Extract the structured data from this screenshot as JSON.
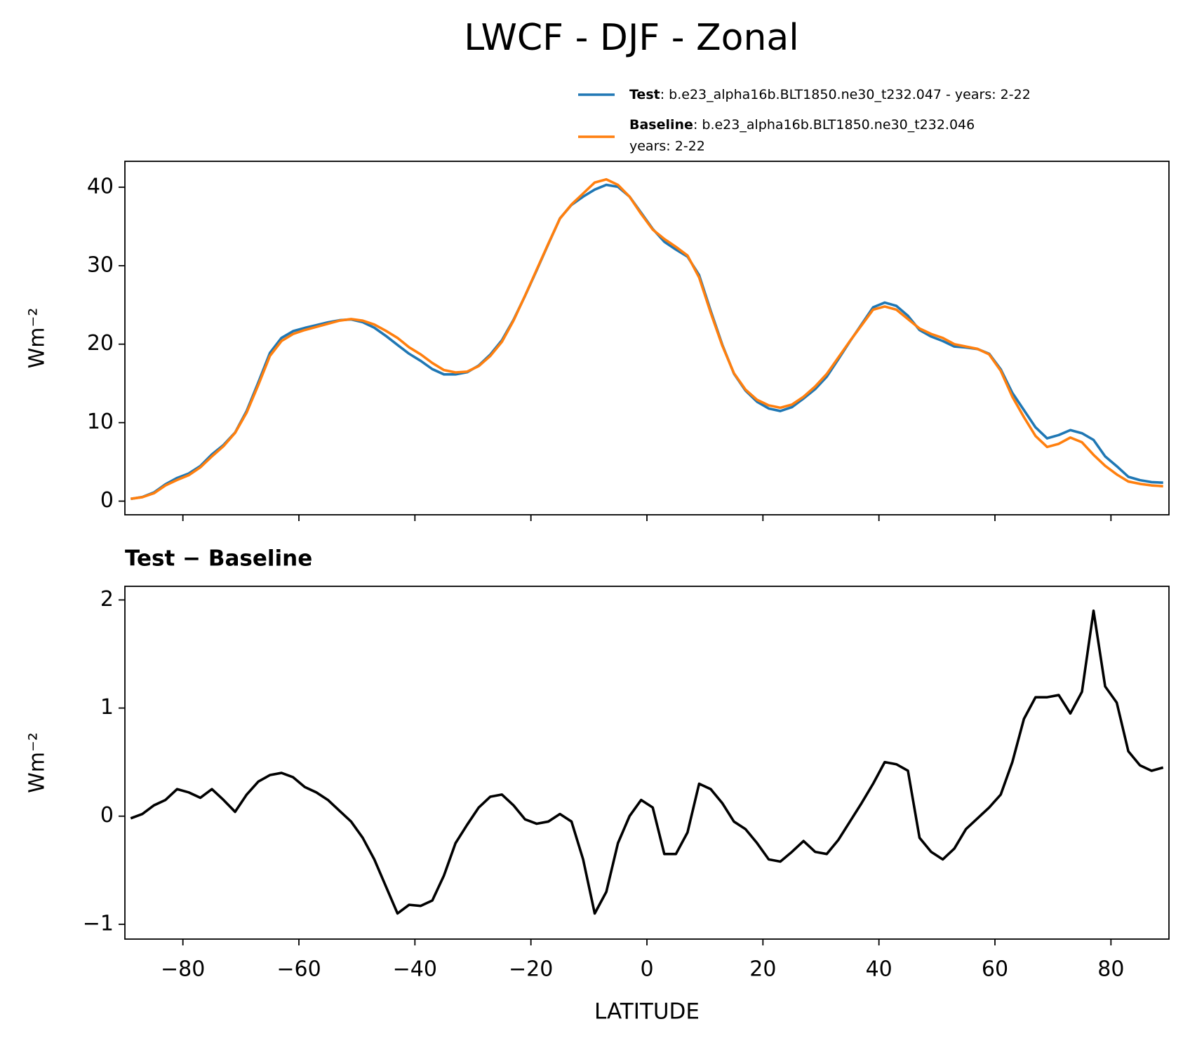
{
  "chart_data": [
    {
      "type": "line",
      "title": "LWCF - DJF - Zonal",
      "ylabel": "Wm⁻²",
      "x": [
        -89,
        -87,
        -85,
        -83,
        -81,
        -79,
        -77,
        -75,
        -73,
        -71,
        -69,
        -67,
        -65,
        -63,
        -61,
        -59,
        -57,
        -55,
        -53,
        -51,
        -49,
        -47,
        -45,
        -43,
        -41,
        -39,
        -37,
        -35,
        -33,
        -31,
        -29,
        -27,
        -25,
        -23,
        -21,
        -19,
        -17,
        -15,
        -13,
        -11,
        -9,
        -7,
        -5,
        -3,
        -1,
        1,
        3,
        5,
        7,
        9,
        11,
        13,
        15,
        17,
        19,
        21,
        23,
        25,
        27,
        29,
        31,
        33,
        35,
        37,
        39,
        41,
        43,
        45,
        47,
        49,
        51,
        53,
        55,
        57,
        59,
        61,
        63,
        65,
        67,
        69,
        71,
        73,
        75,
        77,
        79,
        81,
        83,
        85,
        87,
        89
      ],
      "series": [
        {
          "name": "Test",
          "description": ": b.e23_alpha16b.BLT1850.ne30_t232.047 - years: 2-22",
          "color": "#1f77b4",
          "values": [
            0.28,
            0.52,
            1.1,
            2.15,
            2.95,
            3.52,
            4.47,
            5.95,
            7.15,
            8.74,
            11.5,
            15.12,
            18.88,
            20.8,
            21.66,
            22.07,
            22.42,
            22.78,
            23.05,
            23.15,
            22.8,
            22.1,
            21.05,
            19.9,
            18.78,
            17.87,
            16.82,
            16.15,
            16.15,
            16.42,
            17.28,
            18.68,
            20.5,
            23.1,
            26.17,
            29.43,
            32.75,
            36.02,
            37.75,
            38.8,
            39.7,
            40.3,
            40.05,
            38.8,
            36.75,
            34.68,
            33.05,
            32.05,
            31.15,
            28.8,
            24.25,
            19.92,
            16.25,
            14.08,
            12.65,
            11.8,
            11.48,
            11.97,
            13.07,
            14.27,
            15.85,
            18.08,
            20.35,
            22.52,
            24.7,
            25.3,
            24.88,
            23.62,
            21.8,
            20.97,
            20.4,
            19.7,
            19.58,
            19.38,
            18.78,
            16.8,
            13.8,
            11.6,
            9.4,
            8.0,
            8.42,
            9.05,
            8.65,
            7.8,
            5.7,
            4.45,
            3.1,
            2.67,
            2.42,
            2.35
          ]
        },
        {
          "name": "Baseline",
          "description": ": b.e23_alpha16b.BLT1850.ne30_t232.046",
          "description_line2": "years: 2-22",
          "color": "#ff7f0e",
          "values": [
            0.3,
            0.5,
            1.0,
            2.0,
            2.7,
            3.3,
            4.3,
            5.7,
            7.0,
            8.7,
            11.3,
            14.8,
            18.5,
            20.4,
            21.3,
            21.8,
            22.2,
            22.6,
            23.0,
            23.2,
            23.0,
            22.5,
            21.7,
            20.8,
            19.6,
            18.7,
            17.6,
            16.7,
            16.4,
            16.5,
            17.2,
            18.5,
            20.3,
            23.0,
            26.2,
            29.5,
            32.8,
            36.0,
            37.8,
            39.2,
            40.6,
            41.0,
            40.3,
            38.8,
            36.6,
            34.6,
            33.4,
            32.4,
            31.3,
            28.5,
            24.0,
            19.8,
            16.3,
            14.2,
            12.9,
            12.2,
            11.9,
            12.3,
            13.3,
            14.6,
            16.2,
            18.3,
            20.4,
            22.4,
            24.4,
            24.8,
            24.4,
            23.2,
            22.0,
            21.3,
            20.8,
            20.0,
            19.7,
            19.4,
            18.7,
            16.6,
            13.3,
            10.7,
            8.3,
            6.9,
            7.3,
            8.1,
            7.5,
            5.9,
            4.5,
            3.4,
            2.5,
            2.2,
            2.0,
            1.9
          ]
        }
      ],
      "xlim": [
        -90,
        90
      ],
      "xticks": [
        -80,
        -60,
        -40,
        -20,
        0,
        20,
        40,
        60,
        80
      ],
      "ylim": [
        -1.74,
        43.3
      ],
      "yticks": [
        0,
        10,
        20,
        30,
        40
      ]
    },
    {
      "type": "line",
      "title": "Test − Baseline",
      "ylabel": "Wm⁻²",
      "xlabel": "LATITUDE",
      "x": [
        -89,
        -87,
        -85,
        -83,
        -81,
        -79,
        -77,
        -75,
        -73,
        -71,
        -69,
        -67,
        -65,
        -63,
        -61,
        -59,
        -57,
        -55,
        -53,
        -51,
        -49,
        -47,
        -45,
        -43,
        -41,
        -39,
        -37,
        -35,
        -33,
        -31,
        -29,
        -27,
        -25,
        -23,
        -21,
        -19,
        -17,
        -15,
        -13,
        -11,
        -9,
        -7,
        -5,
        -3,
        -1,
        1,
        3,
        5,
        7,
        9,
        11,
        13,
        15,
        17,
        19,
        21,
        23,
        25,
        27,
        29,
        31,
        33,
        35,
        37,
        39,
        41,
        43,
        45,
        47,
        49,
        51,
        53,
        55,
        57,
        59,
        61,
        63,
        65,
        67,
        69,
        71,
        73,
        75,
        77,
        79,
        81,
        83,
        85,
        87,
        89
      ],
      "series": [
        {
          "color": "#000000",
          "values": [
            -0.02,
            0.02,
            0.1,
            0.15,
            0.25,
            0.22,
            0.17,
            0.25,
            0.15,
            0.04,
            0.2,
            0.32,
            0.38,
            0.4,
            0.36,
            0.27,
            0.22,
            0.15,
            0.05,
            -0.05,
            -0.2,
            -0.4,
            -0.65,
            -0.9,
            -0.82,
            -0.83,
            -0.78,
            -0.55,
            -0.25,
            -0.08,
            0.08,
            0.18,
            0.2,
            0.1,
            -0.03,
            -0.07,
            -0.05,
            0.02,
            -0.05,
            -0.4,
            -0.9,
            -0.7,
            -0.25,
            0.0,
            0.15,
            0.08,
            -0.35,
            -0.35,
            -0.15,
            0.3,
            0.25,
            0.12,
            -0.05,
            -0.12,
            -0.25,
            -0.4,
            -0.42,
            -0.33,
            -0.23,
            -0.33,
            -0.35,
            -0.22,
            -0.05,
            0.12,
            0.3,
            0.5,
            0.48,
            0.42,
            -0.2,
            -0.33,
            -0.4,
            -0.3,
            -0.12,
            -0.02,
            0.08,
            0.2,
            0.5,
            0.9,
            1.1,
            1.1,
            1.12,
            0.95,
            1.15,
            1.9,
            1.2,
            1.05,
            0.6,
            0.47,
            0.42,
            0.45
          ]
        }
      ],
      "xlim": [
        -90,
        90
      ],
      "xticks": [
        {
          "value": -80,
          "label": "−80"
        },
        {
          "value": -60,
          "label": "−60"
        },
        {
          "value": -40,
          "label": "−40"
        },
        {
          "value": -20,
          "label": "−20"
        },
        0,
        20,
        40,
        60,
        80
      ],
      "ylim": [
        -1.137,
        2.126
      ],
      "yticks": [
        {
          "value": -1,
          "label": "−1"
        },
        0,
        1,
        2
      ]
    }
  ]
}
